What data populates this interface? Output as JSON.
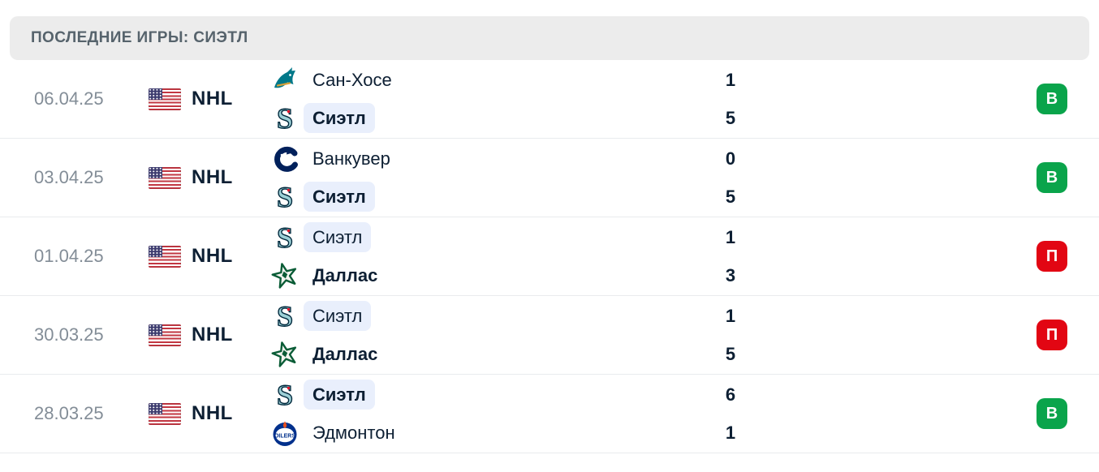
{
  "header": {
    "title": "ПОСЛЕДНИЕ ИГРЫ: СИЭТЛ"
  },
  "colors": {
    "win": "#0aa44b",
    "loss": "#e20613",
    "highlight_bg": "#e9effc",
    "text_dark": "#0d1f33",
    "text_muted": "#838d97"
  },
  "matches": [
    {
      "date": "06.04.25",
      "league": "NHL",
      "teams": [
        {
          "name": "Сан-Хосе",
          "logo": "san-jose-sharks-logo",
          "score": "1",
          "winner": false,
          "highlighted": false
        },
        {
          "name": "Сиэтл",
          "logo": "seattle-kraken-logo",
          "score": "5",
          "winner": true,
          "highlighted": true
        }
      ],
      "result": {
        "label": "В",
        "type": "win"
      }
    },
    {
      "date": "03.04.25",
      "league": "NHL",
      "teams": [
        {
          "name": "Ванкувер",
          "logo": "vancouver-canucks-logo",
          "score": "0",
          "winner": false,
          "highlighted": false
        },
        {
          "name": "Сиэтл",
          "logo": "seattle-kraken-logo",
          "score": "5",
          "winner": true,
          "highlighted": true
        }
      ],
      "result": {
        "label": "В",
        "type": "win"
      }
    },
    {
      "date": "01.04.25",
      "league": "NHL",
      "teams": [
        {
          "name": "Сиэтл",
          "logo": "seattle-kraken-logo",
          "score": "1",
          "winner": false,
          "highlighted": true
        },
        {
          "name": "Даллас",
          "logo": "dallas-stars-logo",
          "score": "3",
          "winner": true,
          "highlighted": false
        }
      ],
      "result": {
        "label": "П",
        "type": "loss"
      }
    },
    {
      "date": "30.03.25",
      "league": "NHL",
      "teams": [
        {
          "name": "Сиэтл",
          "logo": "seattle-kraken-logo",
          "score": "1",
          "winner": false,
          "highlighted": true
        },
        {
          "name": "Даллас",
          "logo": "dallas-stars-logo",
          "score": "5",
          "winner": true,
          "highlighted": false
        }
      ],
      "result": {
        "label": "П",
        "type": "loss"
      }
    },
    {
      "date": "28.03.25",
      "league": "NHL",
      "teams": [
        {
          "name": "Сиэтл",
          "logo": "seattle-kraken-logo",
          "score": "6",
          "winner": true,
          "highlighted": true
        },
        {
          "name": "Эдмонтон",
          "logo": "edmonton-oilers-logo",
          "score": "1",
          "winner": false,
          "highlighted": false
        }
      ],
      "result": {
        "label": "В",
        "type": "win"
      }
    }
  ]
}
